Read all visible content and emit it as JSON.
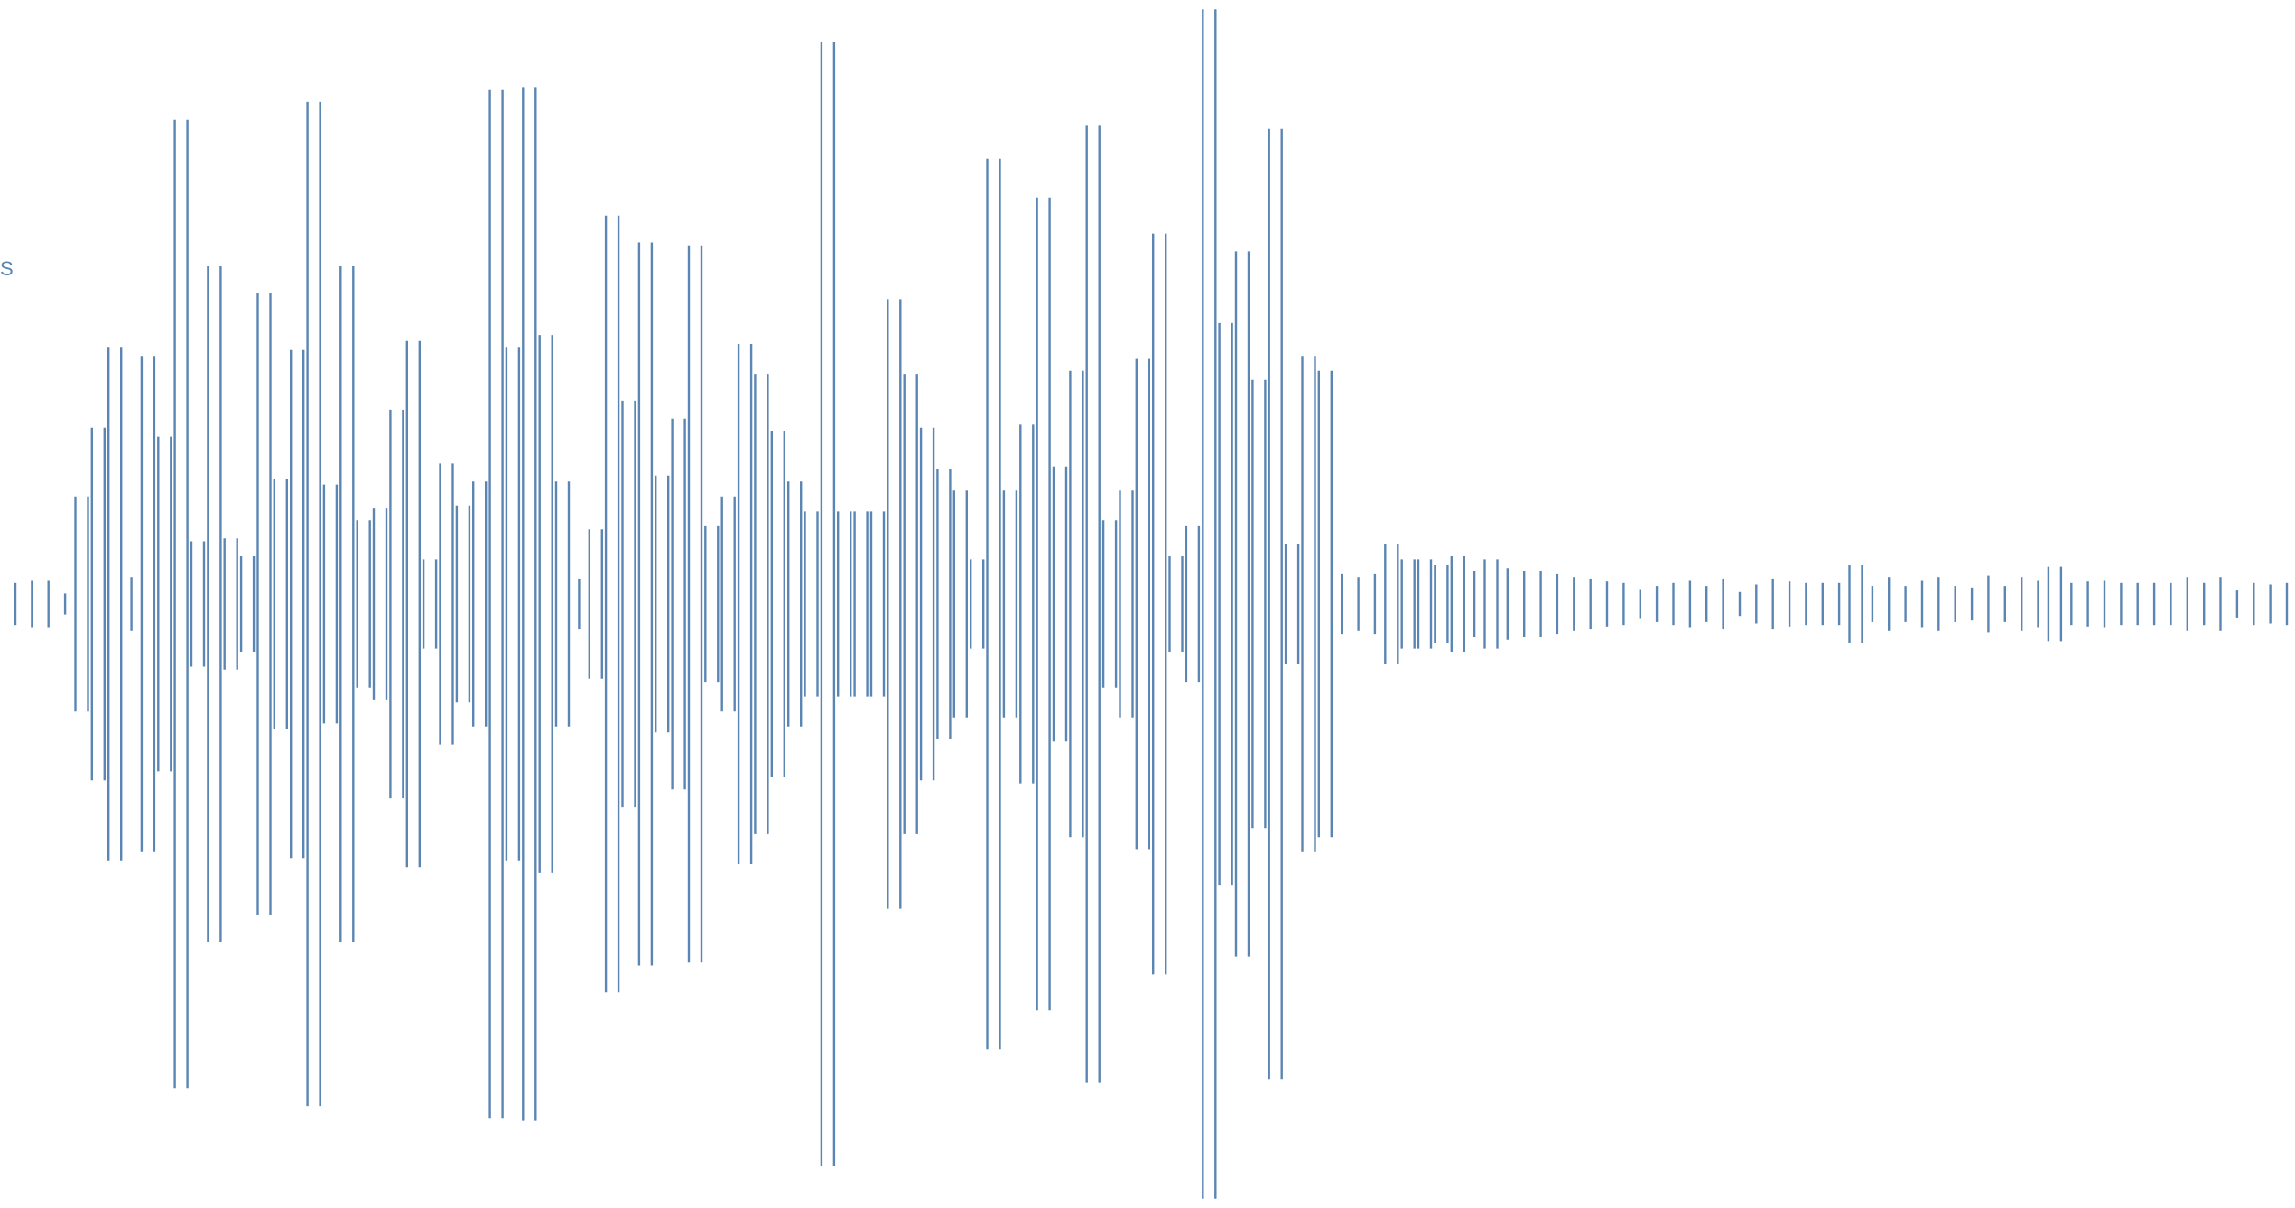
{
  "side_label": "S",
  "colors": {
    "waveform": "#5b86b3",
    "background": "#ffffff"
  },
  "waveform": {
    "peak_amplitude": 1.0,
    "amplitudes": [
      0.07,
      0.08,
      0.08,
      0.035,
      0.36,
      0.59,
      0.86,
      0.09,
      0.83,
      0.56,
      1.62,
      0.21,
      1.13,
      0.22,
      0.16,
      1.04,
      0.42,
      0.85,
      1.68,
      0.4,
      1.13,
      0.28,
      0.32,
      0.65,
      0.88,
      0.15,
      0.47,
      0.33,
      0.41,
      1.72,
      0.86,
      1.73,
      0.9,
      0.41,
      0.085,
      0.25,
      1.3,
      0.68,
      1.21,
      0.43,
      0.62,
      1.2,
      0.26,
      0.36,
      0.87,
      0.77,
      0.58,
      0.41,
      0.31,
      1.88,
      0.31,
      0.31,
      0.31,
      1.02,
      0.77,
      0.59,
      0.45,
      0.38,
      0.15,
      1.49,
      0.38,
      0.6,
      1.36,
      0.46,
      0.78,
      1.6,
      0.28,
      0.38,
      0.82,
      1.24,
      0.16,
      0.26,
      1.99,
      0.94,
      1.18,
      0.75,
      1.59,
      0.2,
      0.83,
      0.78,
      0.1,
      0.09,
      0.1,
      0.2,
      0.15,
      0.15,
      0.13,
      0.16,
      0.11,
      0.15,
      0.12,
      0.11,
      0.11,
      0.1,
      0.09,
      0.085,
      0.075,
      0.07,
      0.05,
      0.06,
      0.07,
      0.08,
      0.06,
      0.085,
      0.04,
      0.065,
      0.085,
      0.075,
      0.07,
      0.07,
      0.07,
      0.13,
      0.06,
      0.09,
      0.06,
      0.08,
      0.09,
      0.06,
      0.055,
      0.095,
      0.06,
      0.09,
      0.08,
      0.125,
      0.07,
      0.075,
      0.08,
      0.07,
      0.07,
      0.07,
      0.07,
      0.09,
      0.07,
      0.09,
      0.045,
      0.07,
      0.065,
      0.07
    ]
  }
}
